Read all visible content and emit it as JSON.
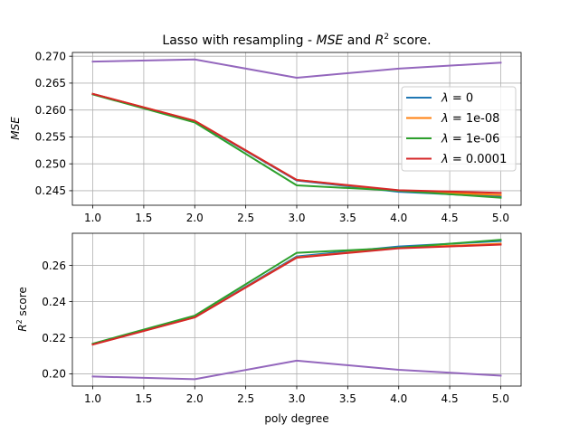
{
  "chart_data": [
    {
      "type": "line",
      "title": "Lasso with resampling - MSE and R² score.",
      "title_parts": {
        "pre": "Lasso with resampling - ",
        "m1": "MSE",
        "mid": " and ",
        "m2": "R",
        "sup": "2",
        "post": " score."
      },
      "xlabel": "",
      "ylabel": "MSE",
      "xlim": [
        0.8,
        5.2
      ],
      "ylim": [
        0.2423,
        0.2707
      ],
      "xticks": [
        1.0,
        1.5,
        2.0,
        2.5,
        3.0,
        3.5,
        4.0,
        4.5,
        5.0
      ],
      "xtick_labels": [
        "1.0",
        "1.5",
        "2.0",
        "2.5",
        "3.0",
        "3.5",
        "4.0",
        "4.5",
        "5.0"
      ],
      "yticks": [
        0.245,
        0.25,
        0.255,
        0.26,
        0.265,
        0.27
      ],
      "ytick_labels": [
        "0.245",
        "0.250",
        "0.255",
        "0.260",
        "0.265",
        "0.270"
      ],
      "grid": true,
      "legend": "center-right",
      "x": [
        1,
        2,
        3,
        4,
        5
      ],
      "series": [
        {
          "name": "λ = 0",
          "legend_value": "0",
          "color": "#1f77b4",
          "values": [
            0.263,
            0.2579,
            0.2469,
            0.2448,
            0.2439
          ]
        },
        {
          "name": "λ = 1e-08",
          "legend_value": "1e-08",
          "color": "#ff7f0e",
          "values": [
            0.263,
            0.258,
            0.247,
            0.245,
            0.2442
          ]
        },
        {
          "name": "λ = 1e-06",
          "legend_value": "1e-06",
          "color": "#2ca02c",
          "values": [
            0.2629,
            0.2577,
            0.246,
            0.245,
            0.2437
          ]
        },
        {
          "name": "λ = 0.0001",
          "legend_value": "0.0001",
          "color": "#d62728",
          "values": [
            0.263,
            0.258,
            0.247,
            0.2451,
            0.2446
          ]
        },
        {
          "color": "#9467bd",
          "values": [
            0.269,
            0.2694,
            0.266,
            0.2677,
            0.2688
          ]
        }
      ]
    },
    {
      "type": "line",
      "xlabel": "poly degree",
      "ylabel": "R² score",
      "ylabel_parts": {
        "base": "R",
        "sup": "2",
        "post": " score"
      },
      "xlim": [
        0.8,
        5.2
      ],
      "ylim": [
        0.1932,
        0.2778
      ],
      "xticks": [
        1.0,
        1.5,
        2.0,
        2.5,
        3.0,
        3.5,
        4.0,
        4.5,
        5.0
      ],
      "xtick_labels": [
        "1.0",
        "1.5",
        "2.0",
        "2.5",
        "3.0",
        "3.5",
        "4.0",
        "4.5",
        "5.0"
      ],
      "yticks": [
        0.2,
        0.22,
        0.24,
        0.26
      ],
      "ytick_labels": [
        "0.20",
        "0.22",
        "0.24",
        "0.26"
      ],
      "grid": true,
      "x": [
        1,
        2,
        3,
        4,
        5
      ],
      "series": [
        {
          "color": "#1f77b4",
          "values": [
            0.2165,
            0.2315,
            0.265,
            0.2705,
            0.2735
          ]
        },
        {
          "color": "#ff7f0e",
          "values": [
            0.2163,
            0.2313,
            0.2645,
            0.2697,
            0.272
          ]
        },
        {
          "color": "#2ca02c",
          "values": [
            0.2167,
            0.2322,
            0.267,
            0.2698,
            0.2742
          ]
        },
        {
          "color": "#d62728",
          "values": [
            0.2162,
            0.2312,
            0.2643,
            0.2695,
            0.2715
          ]
        },
        {
          "color": "#9467bd",
          "values": [
            0.1985,
            0.197,
            0.2073,
            0.2022,
            0.199
          ]
        }
      ]
    }
  ]
}
